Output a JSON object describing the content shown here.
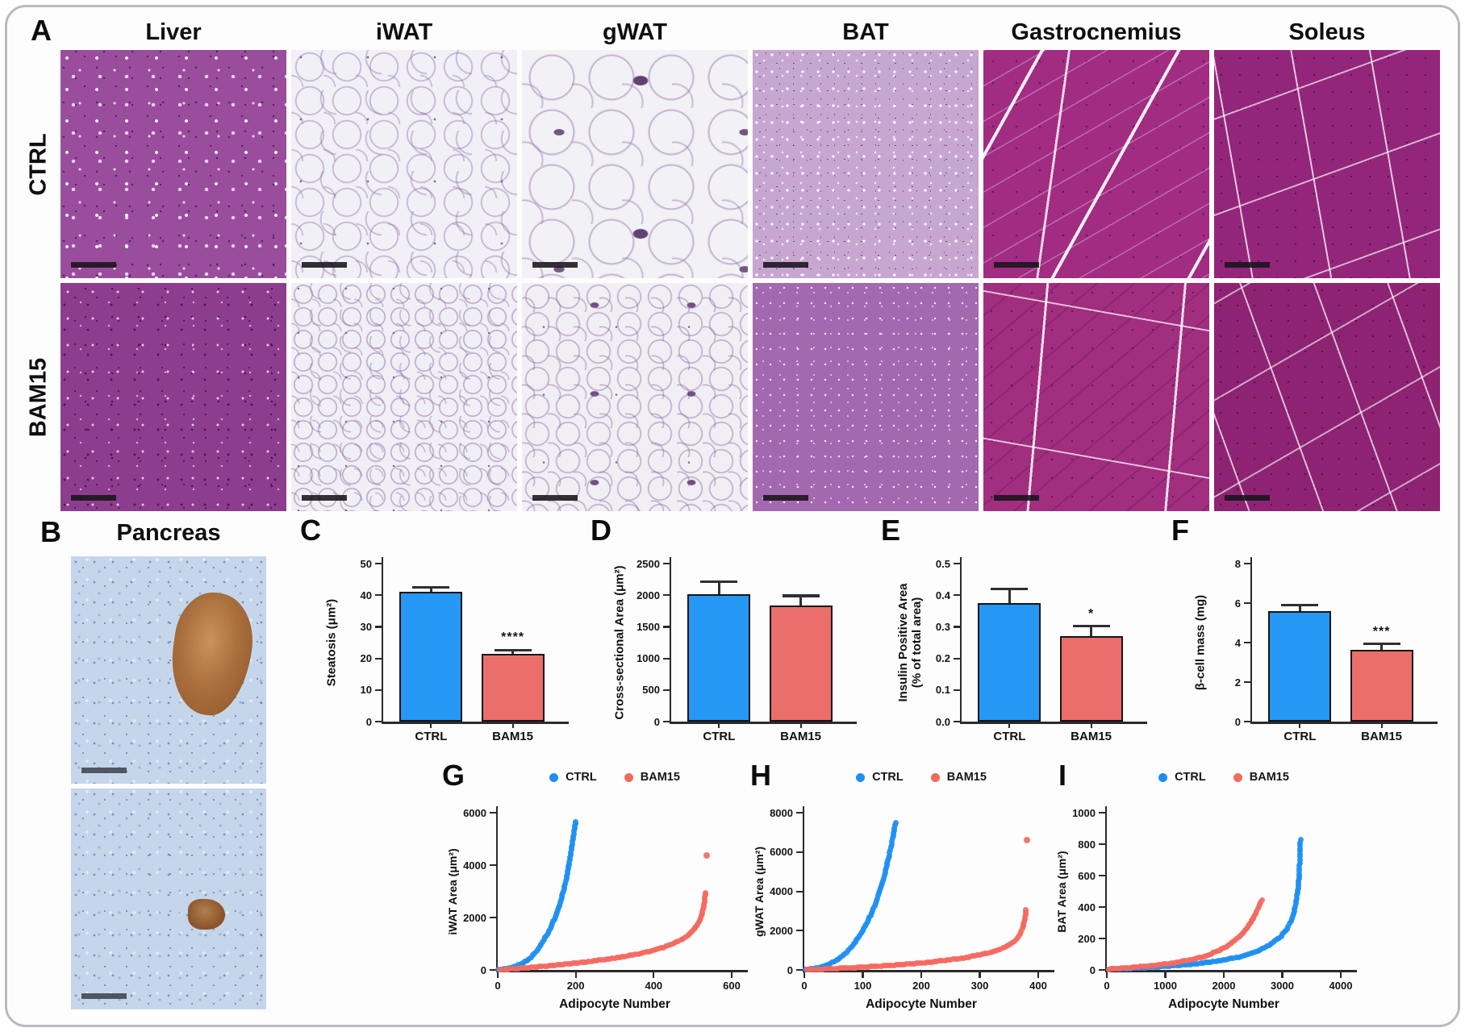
{
  "panel_a": {
    "label": "A",
    "columns": [
      "Liver",
      "iWAT",
      "gWAT",
      "BAT",
      "Gastrocnemius",
      "Soleus"
    ],
    "row_labels": [
      "CTRL",
      "BAM15"
    ]
  },
  "panel_b": {
    "label": "B",
    "title": "Pancreas"
  },
  "colors": {
    "ctrl_bar": "#2498F4",
    "bam15_bar": "#EC6E6B",
    "ctrl_dot": "#1E8FF2",
    "bam15_dot": "#F4695F",
    "axis": "#2b2b2b",
    "bar_border": "#151515"
  },
  "chart_data": [
    {
      "panel": "C",
      "type": "bar",
      "ylabel": "Steatosis (μm²)",
      "categories": [
        "CTRL",
        "BAM15"
      ],
      "values": [
        41,
        21.5
      ],
      "errors": [
        1.5,
        1.2
      ],
      "significance": [
        "",
        "****"
      ],
      "ylim": [
        0,
        50
      ],
      "yticks": [
        "0",
        "10",
        "20",
        "30",
        "40",
        "50"
      ],
      "bar_colors": [
        "#2498F4",
        "#EC6E6B"
      ]
    },
    {
      "panel": "D",
      "type": "bar",
      "ylabel": "Cross-sectional Area (μm²)",
      "categories": [
        "CTRL",
        "BAM15"
      ],
      "values": [
        2010,
        1840
      ],
      "errors": [
        200,
        150
      ],
      "significance": [
        "",
        ""
      ],
      "ylim": [
        0,
        2500
      ],
      "yticks": [
        "0",
        "500",
        "1000",
        "1500",
        "2000",
        "2500"
      ],
      "bar_colors": [
        "#2498F4",
        "#EC6E6B"
      ]
    },
    {
      "panel": "E",
      "type": "bar",
      "ylabel": "Insulin Positive Area\n(% of total area)",
      "categories": [
        "CTRL",
        "BAM15"
      ],
      "values": [
        0.375,
        0.27
      ],
      "errors": [
        0.045,
        0.032
      ],
      "significance": [
        "",
        "*"
      ],
      "ylim": [
        0,
        0.5
      ],
      "yticks": [
        "0.0",
        "0.1",
        "0.2",
        "0.3",
        "0.4",
        "0.5"
      ],
      "bar_colors": [
        "#2498F4",
        "#EC6E6B"
      ]
    },
    {
      "panel": "F",
      "type": "bar",
      "ylabel": "β-cell mass (mg)",
      "categories": [
        "CTRL",
        "BAM15"
      ],
      "values": [
        5.6,
        3.65
      ],
      "errors": [
        0.3,
        0.28
      ],
      "significance": [
        "",
        "***"
      ],
      "ylim": [
        0,
        8
      ],
      "yticks": [
        "0",
        "2",
        "4",
        "6",
        "8"
      ],
      "bar_colors": [
        "#2498F4",
        "#EC6E6B"
      ]
    },
    {
      "panel": "G",
      "type": "scatter",
      "ylabel": "iWAT Area (μm²)",
      "xlabel": "Adipocyte Number",
      "xlim": [
        0,
        600
      ],
      "xticks": [
        "0",
        "200",
        "400",
        "600"
      ],
      "ylim": [
        0,
        6000
      ],
      "yticks": [
        "0",
        "2000",
        "4000",
        "6000"
      ],
      "legend_position": "top",
      "series": [
        {
          "name": "CTRL",
          "color": "#1E8FF2",
          "points": [
            [
              2,
              10
            ],
            [
              15,
              40
            ],
            [
              30,
              80
            ],
            [
              45,
              140
            ],
            [
              60,
              230
            ],
            [
              75,
              360
            ],
            [
              85,
              480
            ],
            [
              95,
              640
            ],
            [
              105,
              830
            ],
            [
              115,
              1060
            ],
            [
              125,
              1320
            ],
            [
              135,
              1600
            ],
            [
              145,
              1930
            ],
            [
              152,
              2200
            ],
            [
              158,
              2460
            ],
            [
              164,
              2760
            ],
            [
              170,
              3100
            ],
            [
              176,
              3480
            ],
            [
              181,
              3860
            ],
            [
              185,
              4200
            ],
            [
              188,
              4480
            ],
            [
              191,
              4800
            ],
            [
              194,
              5100
            ],
            [
              196,
              5300
            ],
            [
              198,
              5500
            ],
            [
              200,
              5650
            ]
          ],
          "outliers": []
        },
        {
          "name": "BAM15",
          "color": "#F4695F",
          "points": [
            [
              5,
              5
            ],
            [
              40,
              40
            ],
            [
              80,
              90
            ],
            [
              120,
              140
            ],
            [
              160,
              200
            ],
            [
              200,
              260
            ],
            [
              240,
              330
            ],
            [
              280,
              410
            ],
            [
              320,
              500
            ],
            [
              360,
              610
            ],
            [
              395,
              730
            ],
            [
              425,
              860
            ],
            [
              450,
              1000
            ],
            [
              470,
              1140
            ],
            [
              487,
              1300
            ],
            [
              500,
              1480
            ],
            [
              510,
              1680
            ],
            [
              518,
              1900
            ],
            [
              524,
              2150
            ],
            [
              528,
              2420
            ],
            [
              531,
              2700
            ],
            [
              533,
              2950
            ]
          ],
          "outliers": [
            [
              536,
              4380
            ]
          ]
        }
      ]
    },
    {
      "panel": "H",
      "type": "scatter",
      "ylabel": "gWAT Area (μm²)",
      "xlabel": "Adipocyte Number",
      "xlim": [
        0,
        400
      ],
      "xticks": [
        "0",
        "100",
        "200",
        "300",
        "400"
      ],
      "ylim": [
        0,
        8000
      ],
      "yticks": [
        "0",
        "2000",
        "4000",
        "6000",
        "8000"
      ],
      "legend_position": "top",
      "series": [
        {
          "name": "CTRL",
          "color": "#1E8FF2",
          "points": [
            [
              2,
              15
            ],
            [
              15,
              60
            ],
            [
              28,
              140
            ],
            [
              40,
              260
            ],
            [
              52,
              430
            ],
            [
              62,
              640
            ],
            [
              72,
              900
            ],
            [
              82,
              1230
            ],
            [
              92,
              1620
            ],
            [
              100,
              2000
            ],
            [
              108,
              2440
            ],
            [
              115,
              2900
            ],
            [
              122,
              3400
            ],
            [
              128,
              3900
            ],
            [
              133,
              4400
            ],
            [
              138,
              4950
            ],
            [
              142,
              5450
            ],
            [
              146,
              5950
            ],
            [
              149,
              6400
            ],
            [
              152,
              6850
            ],
            [
              154,
              7200
            ],
            [
              156,
              7500
            ]
          ],
          "outliers": []
        },
        {
          "name": "BAM15",
          "color": "#F4695F",
          "points": [
            [
              5,
              5
            ],
            [
              35,
              45
            ],
            [
              70,
              95
            ],
            [
              105,
              150
            ],
            [
              140,
              215
            ],
            [
              175,
              290
            ],
            [
              210,
              380
            ],
            [
              240,
              480
            ],
            [
              268,
              590
            ],
            [
              292,
              720
            ],
            [
              313,
              860
            ],
            [
              330,
              1010
            ],
            [
              344,
              1180
            ],
            [
              355,
              1370
            ],
            [
              363,
              1580
            ],
            [
              369,
              1820
            ],
            [
              373,
              2100
            ],
            [
              376,
              2450
            ],
            [
              378,
              2800
            ],
            [
              379,
              3050
            ]
          ],
          "outliers": [
            [
              381,
              6600
            ]
          ]
        }
      ]
    },
    {
      "panel": "I",
      "type": "scatter",
      "ylabel": "BAT Area (μm²)",
      "xlabel": "Adipocyte Number",
      "xlim": [
        0,
        4000
      ],
      "xticks": [
        "0",
        "1000",
        "2000",
        "3000",
        "4000"
      ],
      "ylim": [
        0,
        1000
      ],
      "yticks": [
        "0",
        "200",
        "400",
        "600",
        "800",
        "1000"
      ],
      "legend_position": "top",
      "series": [
        {
          "name": "CTRL",
          "color": "#1E8FF2",
          "points": [
            [
              30,
              5
            ],
            [
              400,
              10
            ],
            [
              800,
              18
            ],
            [
              1200,
              28
            ],
            [
              1600,
              42
            ],
            [
              1950,
              60
            ],
            [
              2250,
              82
            ],
            [
              2500,
              110
            ],
            [
              2700,
              140
            ],
            [
              2850,
              175
            ],
            [
              2980,
              215
            ],
            [
              3080,
              260
            ],
            [
              3150,
              310
            ],
            [
              3200,
              370
            ],
            [
              3240,
              440
            ],
            [
              3270,
              520
            ],
            [
              3290,
              610
            ],
            [
              3300,
              700
            ],
            [
              3308,
              790
            ],
            [
              3312,
              830
            ]
          ],
          "outliers": []
        },
        {
          "name": "BAM15",
          "color": "#F4695F",
          "points": [
            [
              30,
              5
            ],
            [
              400,
              15
            ],
            [
              800,
              28
            ],
            [
              1150,
              45
            ],
            [
              1450,
              65
            ],
            [
              1700,
              90
            ],
            [
              1900,
              120
            ],
            [
              2080,
              155
            ],
            [
              2220,
              195
            ],
            [
              2340,
              240
            ],
            [
              2440,
              290
            ],
            [
              2520,
              340
            ],
            [
              2580,
              390
            ],
            [
              2630,
              430
            ],
            [
              2655,
              445
            ]
          ],
          "outliers": []
        }
      ]
    }
  ]
}
